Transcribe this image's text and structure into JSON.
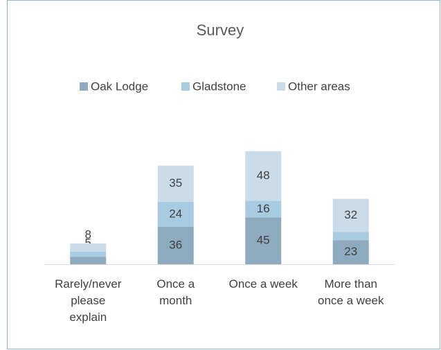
{
  "chart_data": {
    "type": "stacked_bar",
    "title": "Survey",
    "categories": [
      "Rarely/never please explain",
      "Once a month",
      "Once a week",
      "More than once a week"
    ],
    "series": [
      {
        "name": "Oak Lodge",
        "color": "#8eaabf",
        "values": [
          7,
          36,
          45,
          23
        ]
      },
      {
        "name": "Gladstone",
        "color": "#a9cbe2",
        "values": [
          5,
          24,
          16,
          8
        ]
      },
      {
        "name": "Other areas",
        "color": "#cadcea",
        "values": [
          8,
          35,
          48,
          32
        ]
      }
    ],
    "ylim": [
      0,
      120
    ],
    "legend": "top"
  }
}
